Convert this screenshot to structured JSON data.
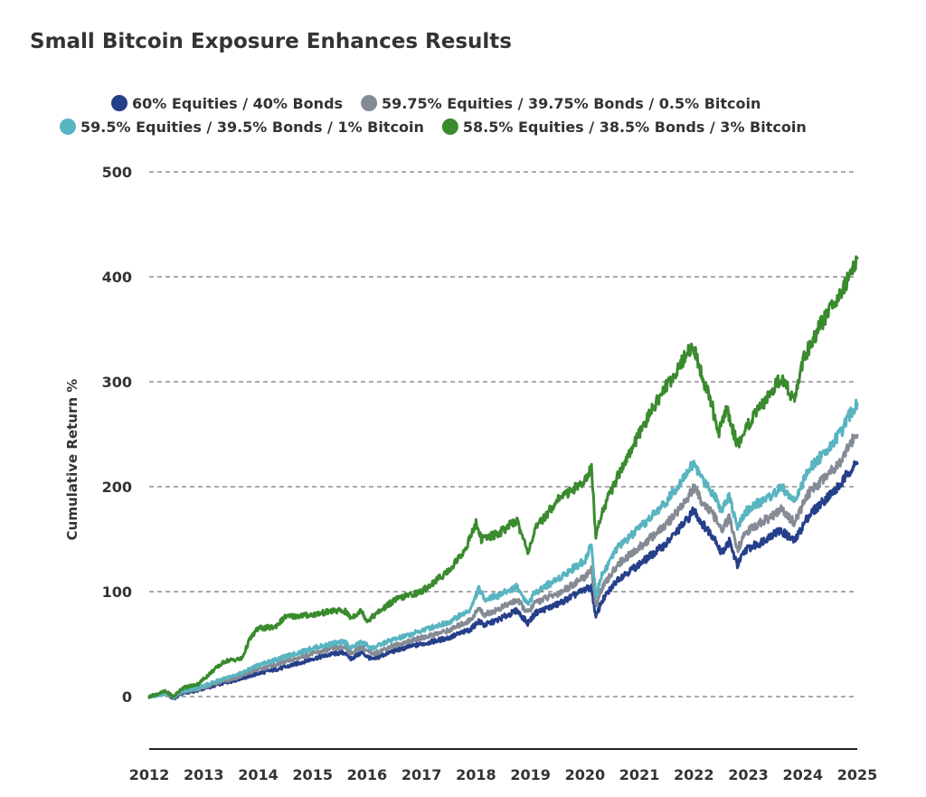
{
  "chart_data": {
    "type": "line",
    "title": "Small Bitcoin Exposure Enhances Results",
    "ylabel": "Cumulative Return %",
    "xlabel": "",
    "xlim": [
      2012,
      2025
    ],
    "ylim": [
      -50,
      500
    ],
    "yticks": [
      0,
      100,
      200,
      300,
      400,
      500
    ],
    "xticks": [
      "2012",
      "2013",
      "2014",
      "2015",
      "2016",
      "2017",
      "2018",
      "2019",
      "2020",
      "2021",
      "2022",
      "2023",
      "2024",
      "2025"
    ],
    "grid": "horizontal-dashed",
    "legend_position": "top",
    "series": [
      {
        "name": "60% Equities / 40% Bonds",
        "color": "#253f8a",
        "points": [
          [
            2012.0,
            0
          ],
          [
            2012.3,
            3
          ],
          [
            2012.45,
            -2
          ],
          [
            2012.6,
            3
          ],
          [
            2012.9,
            6
          ],
          [
            2013.3,
            12
          ],
          [
            2013.6,
            16
          ],
          [
            2014.0,
            22
          ],
          [
            2014.5,
            28
          ],
          [
            2015.0,
            36
          ],
          [
            2015.4,
            41
          ],
          [
            2015.6,
            42
          ],
          [
            2015.7,
            36
          ],
          [
            2015.9,
            42
          ],
          [
            2016.1,
            35
          ],
          [
            2016.4,
            42
          ],
          [
            2016.8,
            48
          ],
          [
            2017.0,
            50
          ],
          [
            2017.5,
            56
          ],
          [
            2017.9,
            64
          ],
          [
            2018.05,
            72
          ],
          [
            2018.15,
            68
          ],
          [
            2018.4,
            73
          ],
          [
            2018.75,
            82
          ],
          [
            2018.95,
            70
          ],
          [
            2019.1,
            80
          ],
          [
            2019.5,
            88
          ],
          [
            2020.0,
            102
          ],
          [
            2020.12,
            104
          ],
          [
            2020.2,
            75
          ],
          [
            2020.3,
            90
          ],
          [
            2020.6,
            112
          ],
          [
            2021.0,
            126
          ],
          [
            2021.5,
            146
          ],
          [
            2021.9,
            170
          ],
          [
            2022.0,
            178
          ],
          [
            2022.15,
            165
          ],
          [
            2022.4,
            150
          ],
          [
            2022.5,
            136
          ],
          [
            2022.65,
            148
          ],
          [
            2022.8,
            125
          ],
          [
            2022.95,
            140
          ],
          [
            2023.2,
            146
          ],
          [
            2023.45,
            155
          ],
          [
            2023.6,
            158
          ],
          [
            2023.85,
            148
          ],
          [
            2024.1,
            172
          ],
          [
            2024.45,
            190
          ],
          [
            2024.7,
            202
          ],
          [
            2024.85,
            215
          ],
          [
            2025.0,
            222
          ]
        ]
      },
      {
        "name": "59.75% Equities / 39.75% Bonds / 0.5% Bitcoin",
        "color": "#858b94",
        "points": [
          [
            2012.0,
            0
          ],
          [
            2012.3,
            3
          ],
          [
            2012.45,
            -1
          ],
          [
            2012.6,
            4
          ],
          [
            2012.9,
            7
          ],
          [
            2013.3,
            14
          ],
          [
            2013.6,
            18
          ],
          [
            2014.0,
            26
          ],
          [
            2014.5,
            33
          ],
          [
            2015.0,
            41
          ],
          [
            2015.4,
            46
          ],
          [
            2015.6,
            47
          ],
          [
            2015.7,
            41
          ],
          [
            2015.9,
            47
          ],
          [
            2016.1,
            40
          ],
          [
            2016.4,
            47
          ],
          [
            2016.8,
            53
          ],
          [
            2017.0,
            56
          ],
          [
            2017.5,
            63
          ],
          [
            2017.9,
            73
          ],
          [
            2018.05,
            84
          ],
          [
            2018.15,
            78
          ],
          [
            2018.4,
            83
          ],
          [
            2018.75,
            92
          ],
          [
            2018.95,
            80
          ],
          [
            2019.1,
            90
          ],
          [
            2019.5,
            98
          ],
          [
            2020.0,
            114
          ],
          [
            2020.12,
            122
          ],
          [
            2020.2,
            85
          ],
          [
            2020.3,
            102
          ],
          [
            2020.6,
            126
          ],
          [
            2021.0,
            142
          ],
          [
            2021.5,
            164
          ],
          [
            2021.9,
            190
          ],
          [
            2022.0,
            199
          ],
          [
            2022.15,
            186
          ],
          [
            2022.4,
            170
          ],
          [
            2022.5,
            158
          ],
          [
            2022.65,
            170
          ],
          [
            2022.8,
            140
          ],
          [
            2022.95,
            156
          ],
          [
            2023.2,
            165
          ],
          [
            2023.45,
            172
          ],
          [
            2023.6,
            178
          ],
          [
            2023.85,
            166
          ],
          [
            2024.1,
            193
          ],
          [
            2024.45,
            212
          ],
          [
            2024.7,
            225
          ],
          [
            2024.85,
            240
          ],
          [
            2025.0,
            249
          ]
        ]
      },
      {
        "name": "59.5% Equities / 39.5% Bonds / 1% Bitcoin",
        "color": "#58b4c0",
        "points": [
          [
            2012.0,
            0
          ],
          [
            2012.3,
            3
          ],
          [
            2012.45,
            0
          ],
          [
            2012.6,
            5
          ],
          [
            2012.9,
            8
          ],
          [
            2013.3,
            16
          ],
          [
            2013.6,
            20
          ],
          [
            2014.0,
            30
          ],
          [
            2014.5,
            38
          ],
          [
            2015.0,
            46
          ],
          [
            2015.4,
            51
          ],
          [
            2015.6,
            52
          ],
          [
            2015.7,
            46
          ],
          [
            2015.9,
            52
          ],
          [
            2016.1,
            46
          ],
          [
            2016.4,
            53
          ],
          [
            2016.8,
            59
          ],
          [
            2017.0,
            63
          ],
          [
            2017.5,
            71
          ],
          [
            2017.9,
            83
          ],
          [
            2018.05,
            103
          ],
          [
            2018.15,
            93
          ],
          [
            2018.4,
            96
          ],
          [
            2018.75,
            105
          ],
          [
            2018.95,
            88
          ],
          [
            2019.1,
            100
          ],
          [
            2019.5,
            112
          ],
          [
            2020.0,
            130
          ],
          [
            2020.12,
            145
          ],
          [
            2020.2,
            95
          ],
          [
            2020.3,
            115
          ],
          [
            2020.6,
            142
          ],
          [
            2021.0,
            160
          ],
          [
            2021.5,
            186
          ],
          [
            2021.9,
            216
          ],
          [
            2022.0,
            222
          ],
          [
            2022.15,
            208
          ],
          [
            2022.4,
            190
          ],
          [
            2022.5,
            178
          ],
          [
            2022.65,
            192
          ],
          [
            2022.8,
            160
          ],
          [
            2022.95,
            176
          ],
          [
            2023.2,
            185
          ],
          [
            2023.45,
            192
          ],
          [
            2023.6,
            200
          ],
          [
            2023.85,
            186
          ],
          [
            2024.1,
            215
          ],
          [
            2024.45,
            236
          ],
          [
            2024.7,
            251
          ],
          [
            2024.85,
            268
          ],
          [
            2025.0,
            279
          ]
        ]
      },
      {
        "name": "58.5% Equities / 38.5% Bonds / 3% Bitcoin",
        "color": "#3a8a2e",
        "points": [
          [
            2012.0,
            0
          ],
          [
            2012.3,
            5
          ],
          [
            2012.45,
            0
          ],
          [
            2012.6,
            8
          ],
          [
            2012.9,
            12
          ],
          [
            2013.2,
            26
          ],
          [
            2013.4,
            34
          ],
          [
            2013.7,
            36
          ],
          [
            2013.85,
            55
          ],
          [
            2014.0,
            65
          ],
          [
            2014.3,
            66
          ],
          [
            2014.5,
            76
          ],
          [
            2015.0,
            78
          ],
          [
            2015.4,
            82
          ],
          [
            2015.6,
            81
          ],
          [
            2015.7,
            75
          ],
          [
            2015.9,
            82
          ],
          [
            2016.0,
            72
          ],
          [
            2016.2,
            80
          ],
          [
            2016.5,
            92
          ],
          [
            2016.8,
            97
          ],
          [
            2017.0,
            100
          ],
          [
            2017.5,
            120
          ],
          [
            2017.8,
            140
          ],
          [
            2018.0,
            165
          ],
          [
            2018.1,
            150
          ],
          [
            2018.4,
            155
          ],
          [
            2018.75,
            168
          ],
          [
            2018.95,
            138
          ],
          [
            2019.1,
            160
          ],
          [
            2019.5,
            188
          ],
          [
            2020.0,
            205
          ],
          [
            2020.12,
            220
          ],
          [
            2020.2,
            150
          ],
          [
            2020.3,
            175
          ],
          [
            2020.6,
            210
          ],
          [
            2020.9,
            240
          ],
          [
            2021.0,
            250
          ],
          [
            2021.3,
            280
          ],
          [
            2021.5,
            296
          ],
          [
            2021.8,
            320
          ],
          [
            2021.9,
            330
          ],
          [
            2022.0,
            332
          ],
          [
            2022.15,
            305
          ],
          [
            2022.3,
            285
          ],
          [
            2022.45,
            250
          ],
          [
            2022.6,
            275
          ],
          [
            2022.8,
            240
          ],
          [
            2023.0,
            260
          ],
          [
            2023.3,
            280
          ],
          [
            2023.6,
            305
          ],
          [
            2023.85,
            282
          ],
          [
            2024.0,
            320
          ],
          [
            2024.3,
            352
          ],
          [
            2024.6,
            378
          ],
          [
            2024.85,
            400
          ],
          [
            2025.0,
            418
          ]
        ]
      }
    ]
  }
}
